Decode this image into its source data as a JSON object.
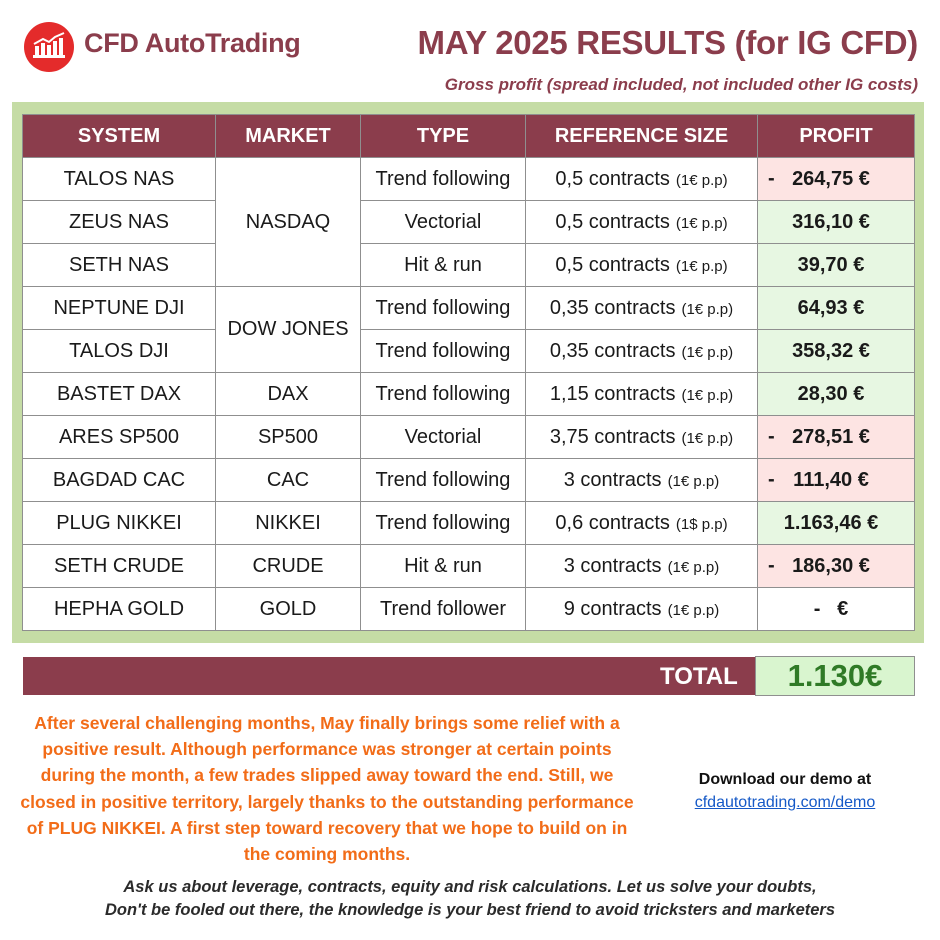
{
  "header": {
    "brand": "CFD AutoTrading",
    "title": "MAY 2025 RESULTS (for IG CFD)",
    "subtitle": "Gross profit (spread included, not included other IG costs)"
  },
  "colors": {
    "brand": "#8b3d4c",
    "logo": "#e42b2b",
    "panel": "#c5dca5",
    "profit_positive_bg": "#e7f7e2",
    "profit_negative_bg": "#fde4e3",
    "commentary": "#f26c18",
    "total_value": "#2f7a26"
  },
  "table": {
    "headers": [
      "SYSTEM",
      "MARKET",
      "TYPE",
      "REFERENCE SIZE",
      "PROFIT"
    ],
    "rows": [
      {
        "system": "TALOS NAS",
        "market": "NASDAQ",
        "type": "Trend following",
        "size": "0,5 contracts",
        "unit": "(1€ p.p)",
        "sign": "-",
        "profit": "264,75 €",
        "status": "neg"
      },
      {
        "system": "ZEUS NAS",
        "market": "",
        "type": "Vectorial",
        "size": "0,5 contracts",
        "unit": "(1€ p.p)",
        "sign": "",
        "profit": "316,10 €",
        "status": "pos"
      },
      {
        "system": "SETH NAS",
        "market": "",
        "type": "Hit & run",
        "size": "0,5 contracts",
        "unit": "(1€ p.p)",
        "sign": "",
        "profit": "39,70 €",
        "status": "pos"
      },
      {
        "system": "NEPTUNE DJI",
        "market": "DOW JONES",
        "type": "Trend following",
        "size": "0,35 contracts",
        "unit": "(1€ p.p)",
        "sign": "",
        "profit": "64,93 €",
        "status": "pos"
      },
      {
        "system": "TALOS DJI",
        "market": "",
        "type": "Trend following",
        "size": "0,35 contracts",
        "unit": "(1€ p.p)",
        "sign": "",
        "profit": "358,32 €",
        "status": "pos"
      },
      {
        "system": "BASTET DAX",
        "market": "DAX",
        "type": "Trend following",
        "size": "1,15 contracts",
        "unit": "(1€ p.p)",
        "sign": "",
        "profit": "28,30 €",
        "status": "pos"
      },
      {
        "system": "ARES SP500",
        "market": "SP500",
        "type": "Vectorial",
        "size": "3,75 contracts",
        "unit": "(1€ p.p)",
        "sign": "-",
        "profit": "278,51 €",
        "status": "neg"
      },
      {
        "system": "BAGDAD CAC",
        "market": "CAC",
        "type": "Trend following",
        "size": "3 contracts",
        "unit": "(1€ p.p)",
        "sign": "-",
        "profit": "111,40 €",
        "status": "neg"
      },
      {
        "system": "PLUG NIKKEI",
        "market": "NIKKEI",
        "type": "Trend following",
        "size": "0,6 contracts",
        "unit": "(1$ p.p)",
        "sign": "",
        "profit": "1.163,46 €",
        "status": "pos"
      },
      {
        "system": "SETH CRUDE",
        "market": "CRUDE",
        "type": "Hit & run",
        "size": "3 contracts",
        "unit": "(1€ p.p)",
        "sign": "-",
        "profit": "186,30 €",
        "status": "neg"
      },
      {
        "system": "HEPHA GOLD",
        "market": "GOLD",
        "type": "Trend follower",
        "size": "9 contracts",
        "unit": "(1€ p.p)",
        "sign": "",
        "profit": "-   €",
        "status": "zero"
      }
    ]
  },
  "total": {
    "label": "TOTAL",
    "value": "1.130€"
  },
  "commentary": "After several challenging months, May finally brings some relief with a positive result. Although performance was stronger at certain points during the month, a few trades slipped away toward the end. Still, we closed in positive territory, largely thanks to the outstanding performance of PLUG NIKKEI. A first step toward recovery that we hope to build on in the coming months.",
  "demo": {
    "text": "Download our demo at",
    "link": "cfdautotrading.com/demo"
  },
  "footer": {
    "line1": "Ask us about leverage, contracts, equity and risk calculations. Let us solve your doubts,",
    "line2": "Don't be fooled out there, the knowledge is your best friend to avoid tricksters and marketers"
  }
}
